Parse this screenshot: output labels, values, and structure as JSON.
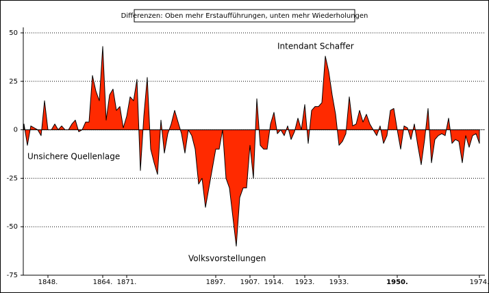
{
  "chart_data": {
    "type": "area",
    "title": "Differenzen: Oben mehr Erstaufführungen, unten mehr Wiederholungen",
    "annotations": [
      "Intendant Schaffer",
      "Unsichere Quellenlage",
      "Volksvorstellungen"
    ],
    "x": [
      1841,
      1842,
      1843,
      1844,
      1845,
      1846,
      1847,
      1848,
      1849,
      1850,
      1851,
      1852,
      1853,
      1854,
      1855,
      1856,
      1857,
      1858,
      1859,
      1860,
      1861,
      1862,
      1863,
      1864,
      1865,
      1866,
      1867,
      1868,
      1869,
      1870,
      1871,
      1872,
      1873,
      1874,
      1875,
      1876,
      1877,
      1878,
      1879,
      1880,
      1881,
      1882,
      1883,
      1884,
      1885,
      1886,
      1887,
      1888,
      1889,
      1890,
      1891,
      1892,
      1893,
      1894,
      1895,
      1896,
      1897,
      1898,
      1899,
      1900,
      1901,
      1902,
      1903,
      1904,
      1905,
      1906,
      1907,
      1908,
      1909,
      1910,
      1911,
      1912,
      1913,
      1914,
      1915,
      1916,
      1917,
      1918,
      1919,
      1920,
      1921,
      1922,
      1923,
      1924,
      1925,
      1926,
      1927,
      1928,
      1929,
      1930,
      1931,
      1932,
      1933,
      1934,
      1935,
      1936,
      1937,
      1938,
      1939,
      1940,
      1941,
      1942,
      1943,
      1944,
      1945,
      1946,
      1947,
      1948,
      1949,
      1950,
      1951,
      1952,
      1953,
      1954,
      1955,
      1956,
      1957,
      1958,
      1959,
      1960,
      1961,
      1962,
      1963,
      1964,
      1965,
      1966,
      1967,
      1968,
      1969,
      1970,
      1971,
      1972,
      1973,
      1974
    ],
    "series": [
      {
        "color": "#ff2a00",
        "values": [
          3,
          -8,
          2,
          1,
          0,
          -3,
          15,
          0,
          0,
          3,
          0,
          2,
          0,
          0,
          3,
          5,
          -1,
          0,
          4,
          4,
          28,
          20,
          15,
          43,
          5,
          18,
          21,
          10,
          12,
          1,
          7,
          17,
          15,
          26,
          -21,
          7,
          27,
          -10,
          -17,
          -23,
          5,
          -12,
          -2,
          3,
          10,
          4,
          -2,
          -12,
          0,
          -3,
          -10,
          -28,
          -25,
          -40,
          -30,
          -20,
          -10,
          -10,
          0,
          -25,
          -30,
          -45,
          -60,
          -35,
          -30,
          -30,
          -8,
          -25,
          16,
          -8,
          -10,
          -10,
          3,
          9,
          -2,
          0,
          -3,
          2,
          -5,
          -1,
          6,
          0,
          13,
          -7,
          10,
          12,
          12,
          14,
          38,
          30,
          18,
          8,
          -8,
          -6,
          -2,
          17,
          2,
          3,
          10,
          4,
          8,
          3,
          0,
          -3,
          2,
          -7,
          -3,
          10,
          11,
          0,
          -10,
          2,
          1,
          -5,
          3,
          -8,
          -18,
          -5,
          11,
          -17,
          -5,
          -3,
          -2,
          -3,
          6,
          -7,
          -5,
          -6,
          -17,
          -3,
          -9,
          -3,
          -2,
          -7
        ]
      }
    ],
    "xlim": [
      1841,
      1975
    ],
    "xticks": [
      {
        "value": 1848,
        "label": "1848."
      },
      {
        "value": 1864,
        "label": "1864."
      },
      {
        "value": 1871,
        "label": "1871."
      },
      {
        "value": 1897,
        "label": "1897."
      },
      {
        "value": 1907,
        "label": "1907."
      },
      {
        "value": 1914,
        "label": "1914."
      },
      {
        "value": 1923,
        "label": "1923."
      },
      {
        "value": 1933,
        "label": "1933."
      },
      {
        "value": 1950,
        "label": "1950."
      },
      {
        "value": 1974,
        "label": "1974."
      }
    ],
    "ylim": [
      -75,
      50
    ],
    "yticks": [
      50,
      25,
      0,
      -25,
      -50,
      -75
    ],
    "grid": true
  }
}
